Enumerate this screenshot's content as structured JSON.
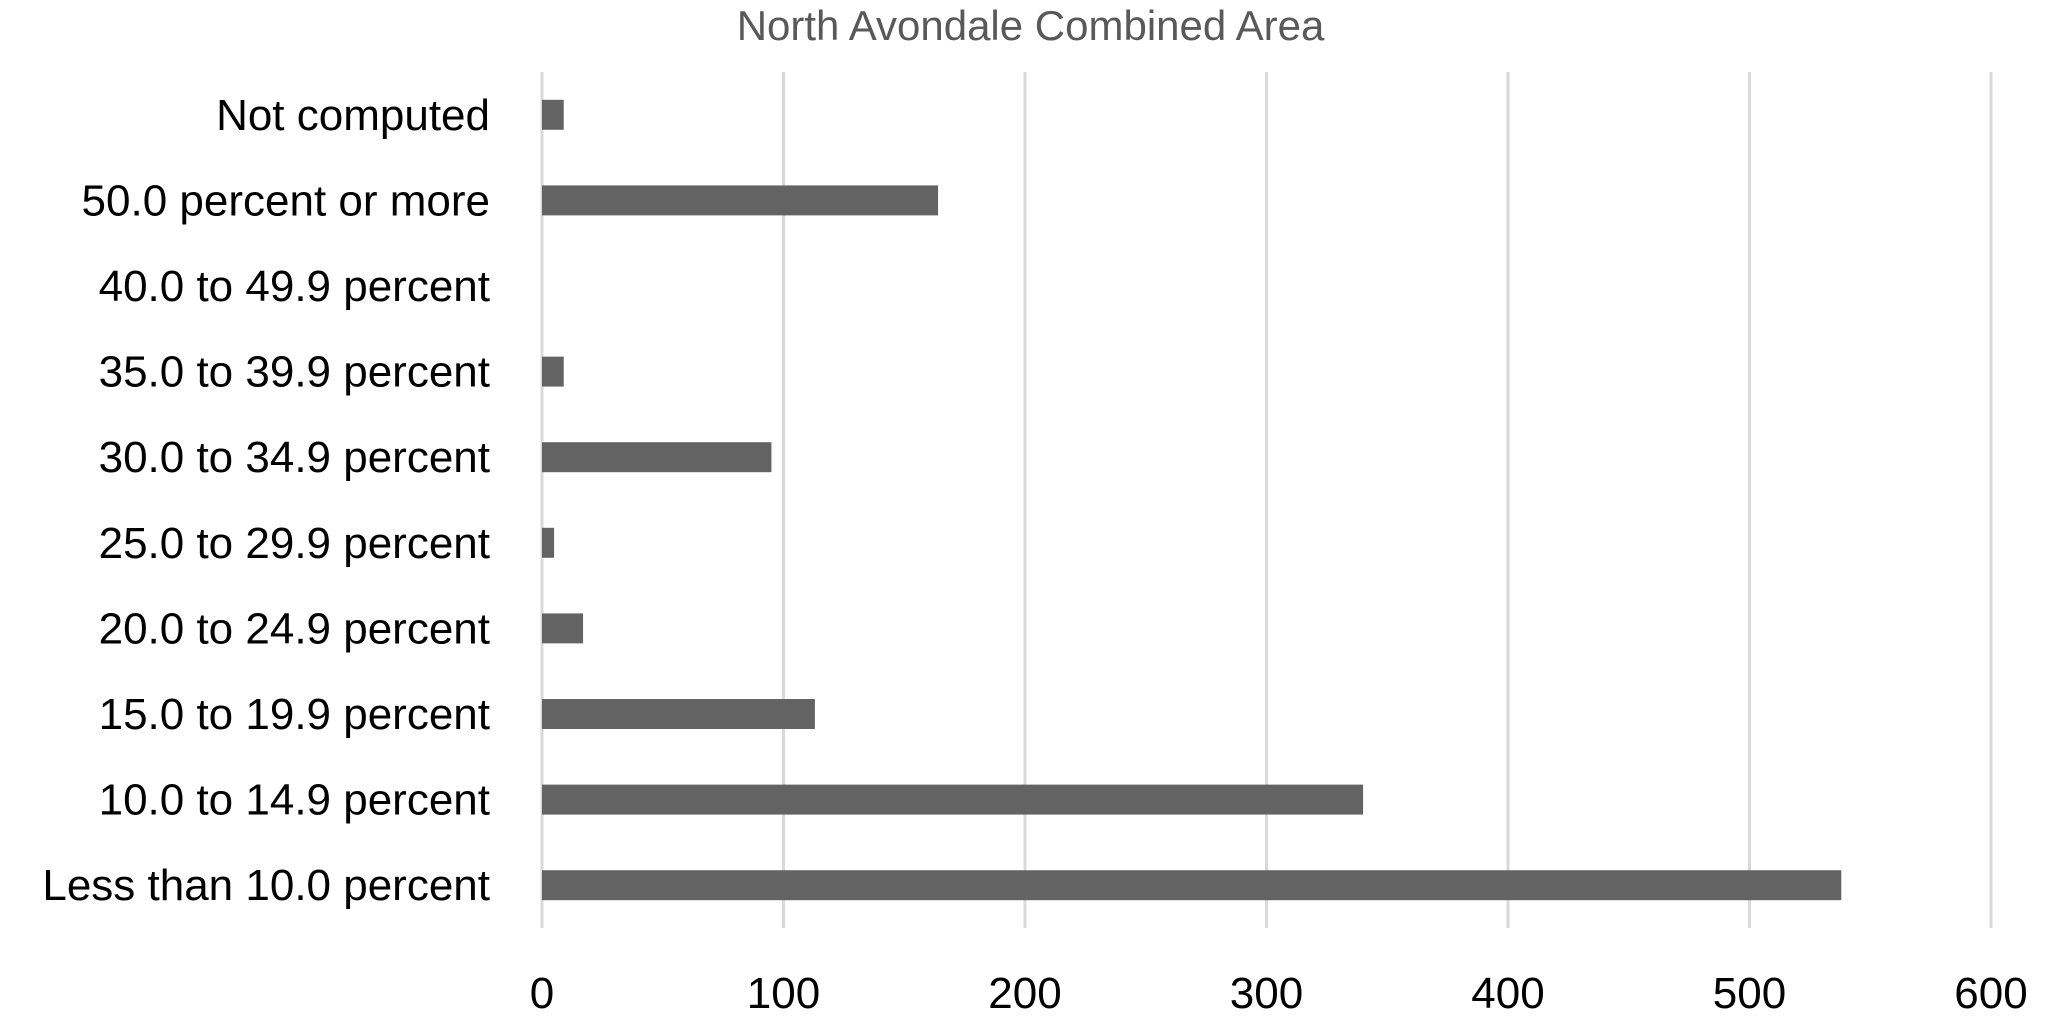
{
  "chart_data": {
    "type": "bar",
    "orientation": "horizontal",
    "title": "North Avondale Combined Area",
    "xlabel": "",
    "ylabel": "",
    "categories": [
      "Not computed",
      "50.0 percent or more",
      "40.0 to 49.9 percent",
      "35.0 to 39.9 percent",
      "30.0 to 34.9 percent",
      "25.0 to 29.9 percent",
      "20.0 to 24.9 percent",
      "15.0 to 19.9 percent",
      "10.0 to 14.9 percent",
      "Less than 10.0 percent"
    ],
    "values": [
      9,
      164,
      0,
      9,
      95,
      5,
      17,
      113,
      340,
      538
    ],
    "xlim": [
      0,
      600
    ],
    "xticks": [
      0,
      100,
      200,
      300,
      400,
      500,
      600
    ],
    "grid": true,
    "legend": "none",
    "colors": {
      "bar": "#636363",
      "grid": "#d9d9d9",
      "title": "#595959",
      "label": "#000000"
    }
  }
}
